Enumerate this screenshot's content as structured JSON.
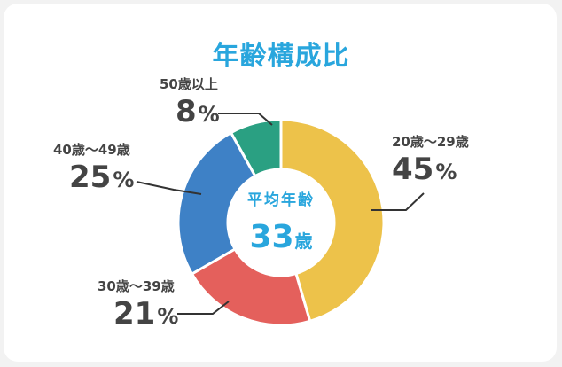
{
  "chart_data": {
    "type": "pie",
    "title": "年齢構成比",
    "center": {
      "label": "平均年齢",
      "value": "33",
      "unit": "歳"
    },
    "slices": [
      {
        "label": "20歳～29歳",
        "value": 45,
        "unit": "%",
        "color": "#edc24a"
      },
      {
        "label": "30歳～39歳",
        "value": 21,
        "unit": "%",
        "color": "#e4605c"
      },
      {
        "label": "40歳～49歳",
        "value": 25,
        "unit": "%",
        "color": "#3e81c6"
      },
      {
        "label": "50歳以上",
        "value": 8,
        "unit": "%",
        "color": "#2aa082"
      }
    ]
  }
}
